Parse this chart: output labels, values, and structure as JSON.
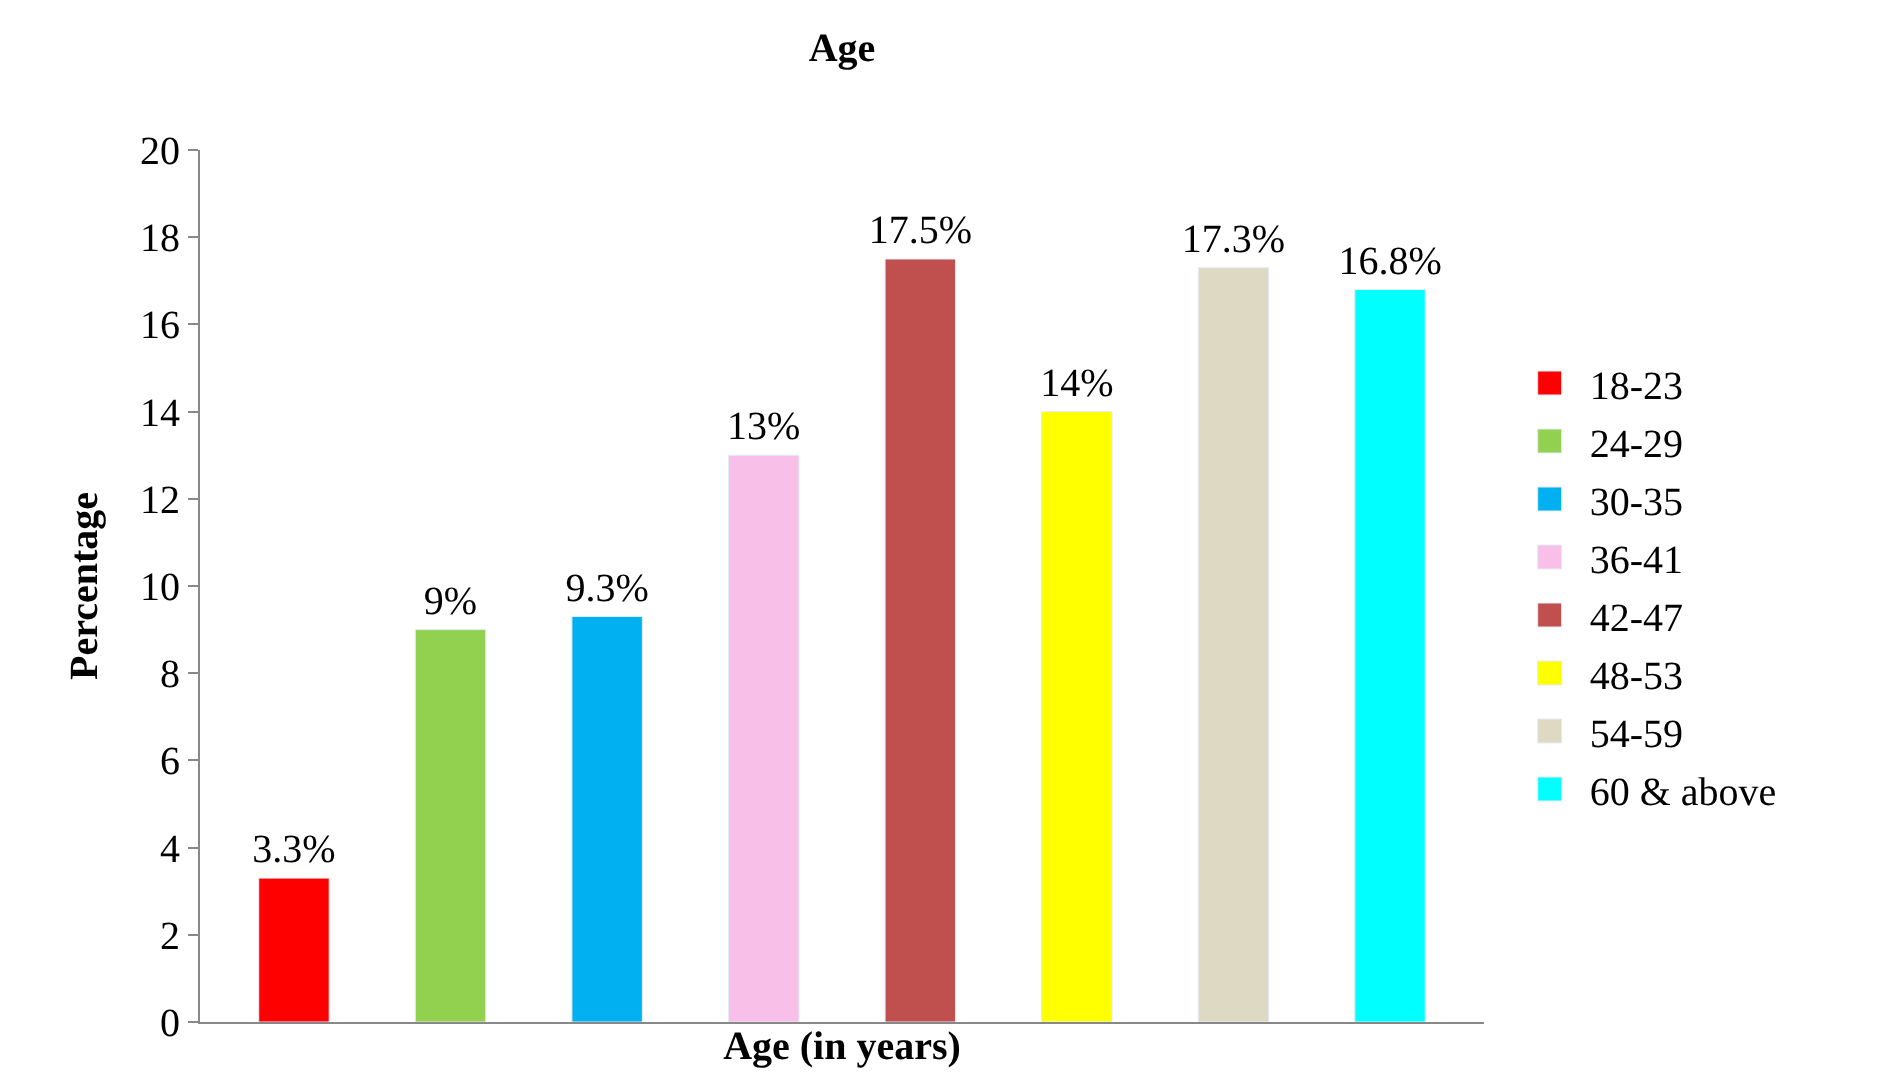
{
  "chart_data": {
    "type": "bar",
    "title": "Age",
    "xlabel": "Age (in years)",
    "ylabel": "Percentage",
    "categories": [
      null,
      null,
      null,
      null,
      null,
      null,
      null,
      null
    ],
    "series": [
      {
        "name": "18-23",
        "color": "#ff0000",
        "values": [
          3.3,
          null,
          null,
          null,
          null,
          null,
          null,
          null
        ],
        "value_labels": [
          "3.3%",
          null,
          null,
          null,
          null,
          null,
          null,
          null
        ]
      },
      {
        "name": "24-29",
        "color": "#92d050",
        "values": [
          null,
          9,
          null,
          null,
          null,
          null,
          null,
          null
        ],
        "value_labels": [
          null,
          "9%",
          null,
          null,
          null,
          null,
          null,
          null
        ]
      },
      {
        "name": "30-35",
        "color": "#00b0f0",
        "values": [
          null,
          null,
          9.3,
          null,
          null,
          null,
          null,
          null
        ],
        "value_labels": [
          null,
          null,
          "9.3%",
          null,
          null,
          null,
          null,
          null
        ]
      },
      {
        "name": "36-41",
        "color": "#f8c0e8",
        "values": [
          null,
          null,
          null,
          13,
          null,
          null,
          null,
          null
        ],
        "value_labels": [
          null,
          null,
          null,
          "13%",
          null,
          null,
          null,
          null
        ]
      },
      {
        "name": "42-47",
        "color": "#c0504d",
        "values": [
          null,
          null,
          null,
          null,
          17.5,
          null,
          null,
          null
        ],
        "value_labels": [
          null,
          null,
          null,
          null,
          "17.5%",
          null,
          null,
          null
        ]
      },
      {
        "name": "48-53",
        "color": "#ffff00",
        "values": [
          null,
          null,
          null,
          null,
          null,
          14,
          null,
          null
        ],
        "value_labels": [
          null,
          null,
          null,
          null,
          null,
          "14%",
          null,
          null
        ]
      },
      {
        "name": "54-59",
        "color": "#ddd9c3",
        "values": [
          null,
          null,
          null,
          null,
          null,
          null,
          17.3,
          null
        ],
        "value_labels": [
          null,
          null,
          null,
          null,
          null,
          null,
          "17.3%",
          null
        ]
      },
      {
        "name": "60 & above",
        "color": "#00ffff",
        "values": [
          null,
          null,
          null,
          null,
          null,
          null,
          null,
          16.8
        ],
        "value_labels": [
          null,
          null,
          null,
          null,
          null,
          null,
          null,
          "16.8%"
        ]
      }
    ],
    "ylim": [
      0,
      20
    ],
    "yticks": [
      0,
      2,
      4,
      6,
      8,
      10,
      12,
      14,
      16,
      18,
      20
    ],
    "legend": "right"
  }
}
